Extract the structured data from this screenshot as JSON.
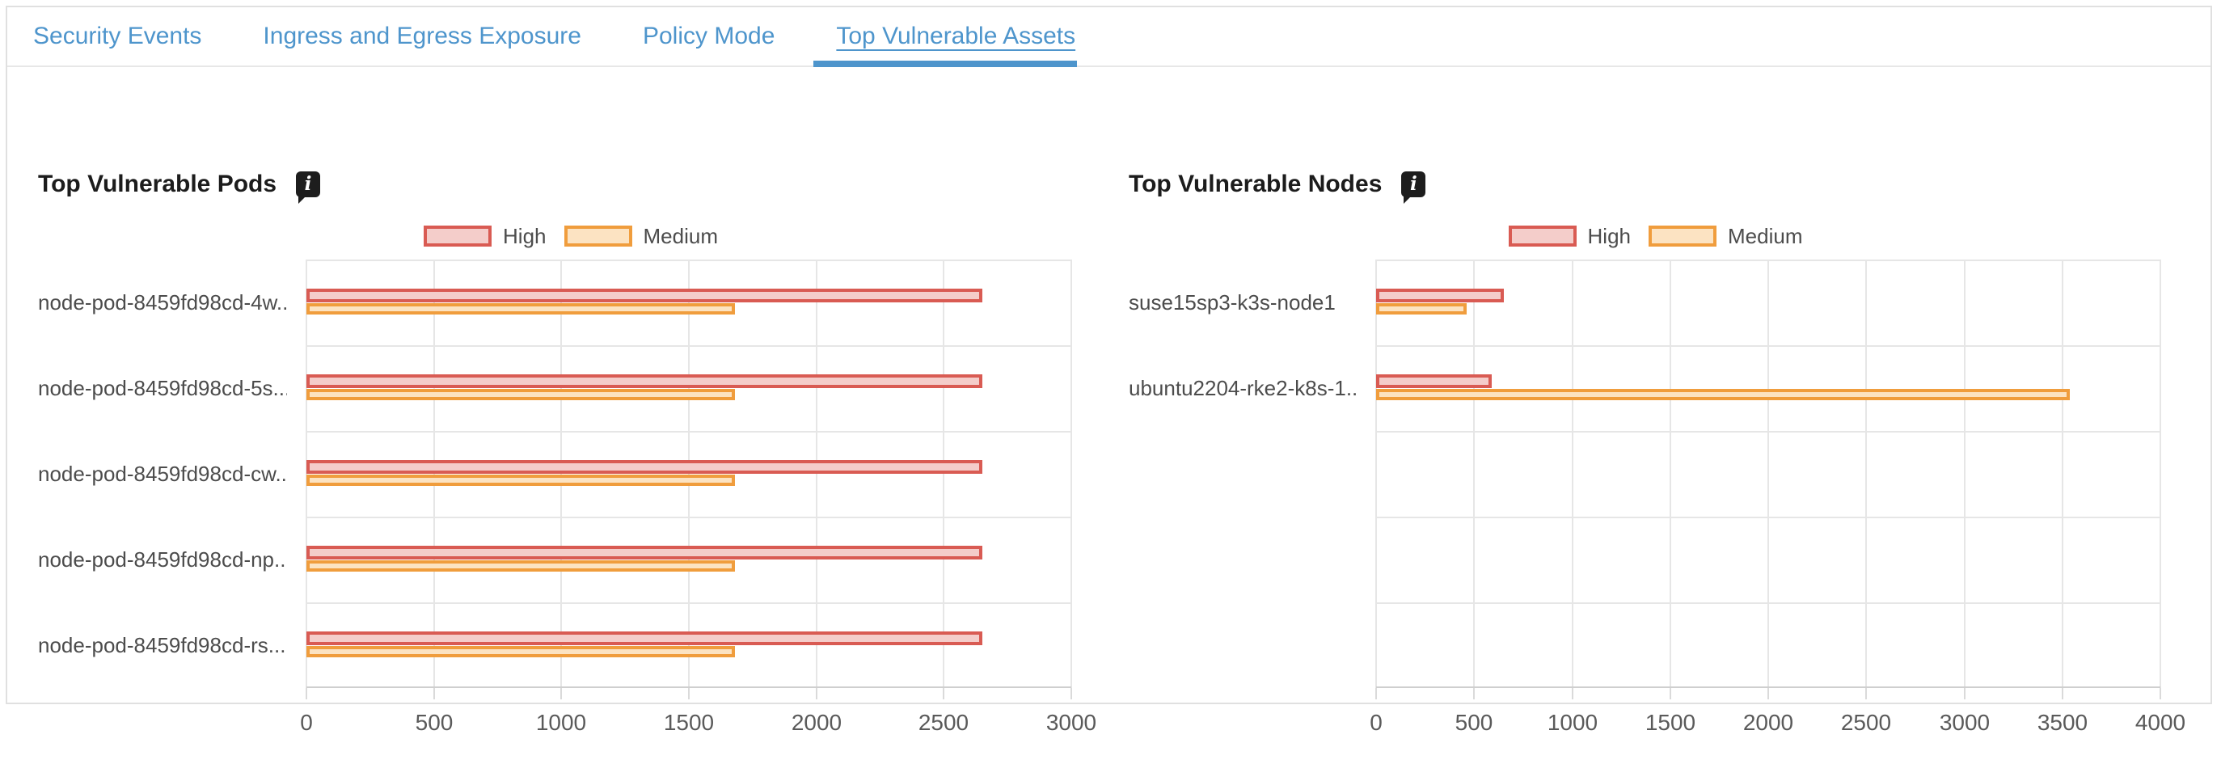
{
  "tabs": {
    "accent_color": "#4e95cc",
    "items": [
      {
        "label": "Security Events",
        "active": false
      },
      {
        "label": "Ingress and Egress Exposure",
        "active": false
      },
      {
        "label": "Policy Mode",
        "active": false
      },
      {
        "label": "Top Vulnerable Assets",
        "active": true
      }
    ]
  },
  "icons": {
    "info": "i"
  },
  "chart_data": [
    {
      "type": "bar",
      "orientation": "horizontal",
      "title": "Top Vulnerable Pods",
      "categories": [
        "node-pod-8459fd98cd-4w...",
        "node-pod-8459fd98cd-5s...",
        "node-pod-8459fd98cd-cw...",
        "node-pod-8459fd98cd-np...",
        "node-pod-8459fd98cd-rs..."
      ],
      "series": [
        {
          "name": "High",
          "values": [
            2650,
            2650,
            2650,
            2650,
            2650
          ],
          "border_color": "#d95b53",
          "fill_color": "#f4cdca"
        },
        {
          "name": "Medium",
          "values": [
            1680,
            1680,
            1680,
            1680,
            1680
          ],
          "border_color": "#f09d3d",
          "fill_color": "#fce3c2"
        }
      ],
      "xlim": [
        0,
        3000
      ],
      "xticks": [
        0,
        500,
        1000,
        1500,
        2000,
        2500,
        3000
      ],
      "row_slots": 5,
      "grid": true,
      "legend_position": "top-center"
    },
    {
      "type": "bar",
      "orientation": "horizontal",
      "title": "Top Vulnerable Nodes",
      "categories": [
        "suse15sp3-k3s-node1",
        "ubuntu2204-rke2-k8s-1...."
      ],
      "series": [
        {
          "name": "High",
          "values": [
            650,
            590
          ],
          "border_color": "#d95b53",
          "fill_color": "#f4cdca"
        },
        {
          "name": "Medium",
          "values": [
            460,
            3540
          ],
          "border_color": "#f09d3d",
          "fill_color": "#fce3c2"
        }
      ],
      "xlim": [
        0,
        4000
      ],
      "xticks": [
        0,
        500,
        1000,
        1500,
        2000,
        2500,
        3000,
        3500,
        4000
      ],
      "row_slots": 5,
      "grid": true,
      "legend_position": "top-center"
    }
  ]
}
